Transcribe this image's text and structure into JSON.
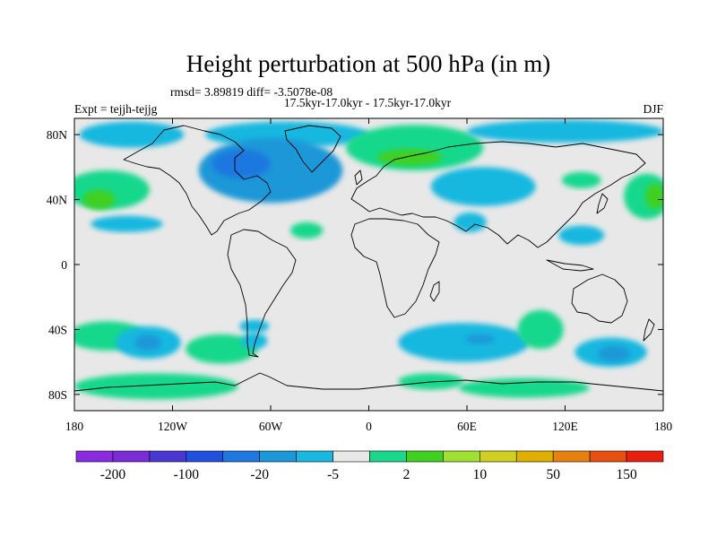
{
  "chart_data": {
    "type": "heatmap",
    "title": "Height perturbation at 500 hPa (in m)",
    "stats_line": "rmsd= 3.89819 diff= -3.5078e-08",
    "subtitle": "17.5kyr-17.0kyr - 17.5kyr-17.0kyr",
    "left_label": "Expt = tejjh-tejjg",
    "right_label": "DJF",
    "xlim": [
      -180,
      180
    ],
    "ylim": [
      -90,
      90
    ],
    "x_ticks": [
      {
        "value": -180,
        "label": "180"
      },
      {
        "value": -120,
        "label": "120W"
      },
      {
        "value": -60,
        "label": "60W"
      },
      {
        "value": 0,
        "label": "0"
      },
      {
        "value": 60,
        "label": "60E"
      },
      {
        "value": 120,
        "label": "120E"
      },
      {
        "value": 180,
        "label": "180"
      }
    ],
    "y_ticks": [
      {
        "value": 80,
        "label": "80N"
      },
      {
        "value": 40,
        "label": "40N"
      },
      {
        "value": 0,
        "label": "0"
      },
      {
        "value": -40,
        "label": "40S"
      },
      {
        "value": -80,
        "label": "80S"
      }
    ],
    "colorbar": {
      "colors": [
        "#8a2be2",
        "#7a2cd8",
        "#4a36d2",
        "#2050e0",
        "#1e78e0",
        "#1a98d8",
        "#18b8e0",
        "#e8e8e8",
        "#18d88c",
        "#40d020",
        "#a0e030",
        "#d0d020",
        "#e0b000",
        "#e88010",
        "#e85010",
        "#e82010"
      ],
      "labels": [
        "-200",
        "-100",
        "-20",
        "-5",
        "2",
        "10",
        "50",
        "150"
      ]
    },
    "anomalies": [
      {
        "lon": -60,
        "lat": 58,
        "rx": 44,
        "ry": 20,
        "level": -2
      },
      {
        "lon": -78,
        "lat": 62,
        "rx": 18,
        "ry": 9,
        "level": -3
      },
      {
        "lon": -50,
        "lat": 80,
        "rx": 50,
        "ry": 8,
        "level": -1
      },
      {
        "lon": -145,
        "lat": 80,
        "rx": 32,
        "ry": 8,
        "level": -1
      },
      {
        "lon": -160,
        "lat": 46,
        "rx": 26,
        "ry": 12,
        "level": 1
      },
      {
        "lon": -165,
        "lat": 40,
        "rx": 10,
        "ry": 6,
        "level": 2
      },
      {
        "lon": -148,
        "lat": 25,
        "rx": 22,
        "ry": 5,
        "level": -1
      },
      {
        "lon": 28,
        "lat": 72,
        "rx": 42,
        "ry": 14,
        "level": 1
      },
      {
        "lon": 25,
        "lat": 66,
        "rx": 20,
        "ry": 5,
        "level": 2
      },
      {
        "lon": 70,
        "lat": 48,
        "rx": 32,
        "ry": 12,
        "level": -1
      },
      {
        "lon": 120,
        "lat": 82,
        "rx": 60,
        "ry": 7,
        "level": -1
      },
      {
        "lon": 130,
        "lat": 52,
        "rx": 12,
        "ry": 5,
        "level": 1
      },
      {
        "lon": 170,
        "lat": 42,
        "rx": 14,
        "ry": 14,
        "level": 1
      },
      {
        "lon": 175,
        "lat": 42,
        "rx": 6,
        "ry": 8,
        "level": 2
      },
      {
        "lon": -38,
        "lat": 21,
        "rx": 10,
        "ry": 5,
        "level": 1
      },
      {
        "lon": 62,
        "lat": 26,
        "rx": 10,
        "ry": 6,
        "level": -1
      },
      {
        "lon": 130,
        "lat": 18,
        "rx": 14,
        "ry": 6,
        "level": -1
      },
      {
        "lon": -160,
        "lat": -44,
        "rx": 24,
        "ry": 9,
        "level": 1
      },
      {
        "lon": -135,
        "lat": -48,
        "rx": 20,
        "ry": 10,
        "level": -1
      },
      {
        "lon": -135,
        "lat": -48,
        "rx": 8,
        "ry": 5,
        "level": -2
      },
      {
        "lon": -90,
        "lat": -52,
        "rx": 22,
        "ry": 9,
        "level": 1
      },
      {
        "lon": -70,
        "lat": -38,
        "rx": 9,
        "ry": 4,
        "level": -1
      },
      {
        "lon": -70,
        "lat": -47,
        "rx": 8,
        "ry": 5,
        "level": -1
      },
      {
        "lon": 58,
        "lat": -48,
        "rx": 40,
        "ry": 12,
        "level": -1
      },
      {
        "lon": 68,
        "lat": -46,
        "rx": 9,
        "ry": 3,
        "level": -2
      },
      {
        "lon": 105,
        "lat": -40,
        "rx": 14,
        "ry": 12,
        "level": 1
      },
      {
        "lon": 148,
        "lat": -54,
        "rx": 22,
        "ry": 9,
        "level": -1
      },
      {
        "lon": 150,
        "lat": -55,
        "rx": 10,
        "ry": 5,
        "level": -2
      },
      {
        "lon": -130,
        "lat": -75,
        "rx": 50,
        "ry": 8,
        "level": 1
      },
      {
        "lon": 95,
        "lat": -76,
        "rx": 40,
        "ry": 6,
        "level": 1
      },
      {
        "lon": 38,
        "lat": -72,
        "rx": 20,
        "ry": 5,
        "level": 1
      }
    ]
  }
}
